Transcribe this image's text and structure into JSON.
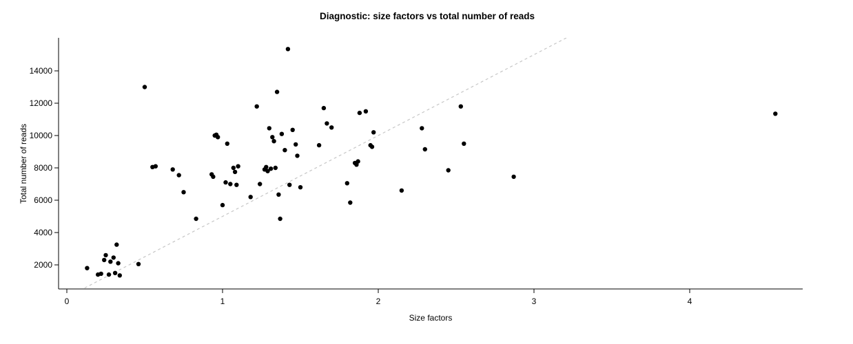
{
  "page": {
    "background": "#ffffff"
  },
  "chart_data": {
    "type": "scatter",
    "title": "Diagnostic: size factors vs total number of reads",
    "xlabel": "Size factors",
    "ylabel": "Total number of reads",
    "xlim": [
      -0.05,
      4.75
    ],
    "ylim": [
      500,
      16000
    ],
    "x_ticks": [
      0,
      1,
      2,
      3,
      4
    ],
    "y_ticks": [
      2000,
      4000,
      6000,
      8000,
      10000,
      12000,
      14000
    ],
    "grid": false,
    "legend": false,
    "point_color": "#000000",
    "reference_line": {
      "style": "dashed",
      "color": "#c6c6c6",
      "slope": 5000,
      "intercept": 0
    },
    "points": [
      [
        0.13,
        1800
      ],
      [
        0.2,
        1400
      ],
      [
        0.22,
        1450
      ],
      [
        0.24,
        2300
      ],
      [
        0.25,
        2600
      ],
      [
        0.27,
        1400
      ],
      [
        0.28,
        2200
      ],
      [
        0.3,
        2450
      ],
      [
        0.31,
        1500
      ],
      [
        0.32,
        3250
      ],
      [
        0.33,
        2100
      ],
      [
        0.34,
        1350
      ],
      [
        0.46,
        2050
      ],
      [
        0.5,
        13000
      ],
      [
        0.55,
        8050
      ],
      [
        0.57,
        8100
      ],
      [
        0.68,
        7900
      ],
      [
        0.72,
        7550
      ],
      [
        0.75,
        6500
      ],
      [
        0.83,
        4850
      ],
      [
        0.93,
        7600
      ],
      [
        0.94,
        7450
      ],
      [
        0.95,
        10000
      ],
      [
        0.96,
        10050
      ],
      [
        0.97,
        9900
      ],
      [
        1.0,
        5700
      ],
      [
        1.02,
        7100
      ],
      [
        1.03,
        9500
      ],
      [
        1.05,
        7000
      ],
      [
        1.07,
        8000
      ],
      [
        1.08,
        7750
      ],
      [
        1.09,
        6950
      ],
      [
        1.1,
        8100
      ],
      [
        1.18,
        6200
      ],
      [
        1.22,
        11800
      ],
      [
        1.24,
        7000
      ],
      [
        1.27,
        7900
      ],
      [
        1.28,
        8050
      ],
      [
        1.29,
        7800
      ],
      [
        1.3,
        10450
      ],
      [
        1.31,
        7950
      ],
      [
        1.32,
        9900
      ],
      [
        1.33,
        9650
      ],
      [
        1.34,
        8000
      ],
      [
        1.35,
        12700
      ],
      [
        1.36,
        6350
      ],
      [
        1.37,
        4850
      ],
      [
        1.38,
        10100
      ],
      [
        1.4,
        9100
      ],
      [
        1.42,
        15350
      ],
      [
        1.43,
        6950
      ],
      [
        1.45,
        10350
      ],
      [
        1.47,
        9450
      ],
      [
        1.48,
        8750
      ],
      [
        1.5,
        6800
      ],
      [
        1.62,
        9400
      ],
      [
        1.65,
        11700
      ],
      [
        1.67,
        10750
      ],
      [
        1.7,
        10500
      ],
      [
        1.8,
        7050
      ],
      [
        1.82,
        5850
      ],
      [
        1.85,
        8300
      ],
      [
        1.86,
        8200
      ],
      [
        1.87,
        8400
      ],
      [
        1.88,
        11400
      ],
      [
        1.92,
        11500
      ],
      [
        1.95,
        9400
      ],
      [
        1.96,
        9300
      ],
      [
        1.97,
        10200
      ],
      [
        2.15,
        6600
      ],
      [
        2.28,
        10450
      ],
      [
        2.3,
        9150
      ],
      [
        2.45,
        7850
      ],
      [
        2.53,
        11800
      ],
      [
        2.55,
        9500
      ],
      [
        2.87,
        7450
      ],
      [
        4.55,
        11350
      ]
    ]
  }
}
